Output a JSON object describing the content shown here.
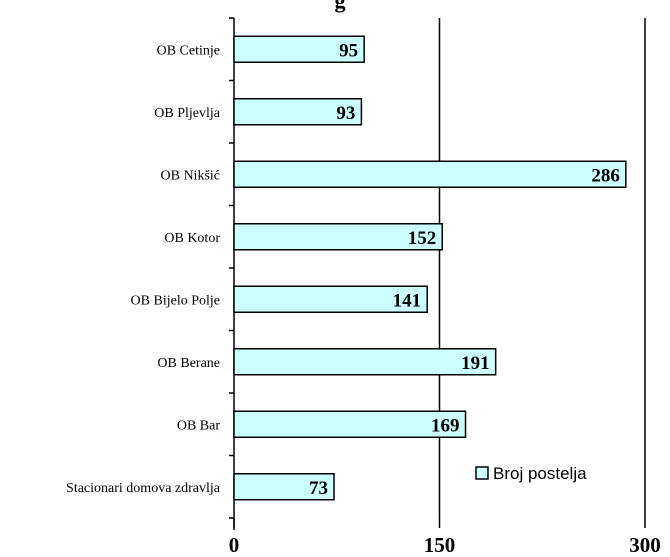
{
  "chart_data": {
    "type": "bar",
    "orientation": "horizontal",
    "title": "g",
    "categories": [
      "OB Cetinje",
      "OB Pljevlja",
      "OB Nikšić",
      "OB Kotor",
      "OB Bijelo Polje",
      "OB Berane",
      "OB Bar",
      "Stacionari domova zdravlja"
    ],
    "series": [
      {
        "name": "Broj postelja",
        "values": [
          95,
          93,
          286,
          152,
          141,
          191,
          169,
          73
        ]
      }
    ],
    "xlim": [
      0,
      300
    ],
    "xticks": [
      0,
      150,
      300
    ],
    "grid": true,
    "legend_position": "bottom-right",
    "colors": {
      "bar_fill": "#ccffff",
      "bar_stroke": "#000000"
    }
  }
}
